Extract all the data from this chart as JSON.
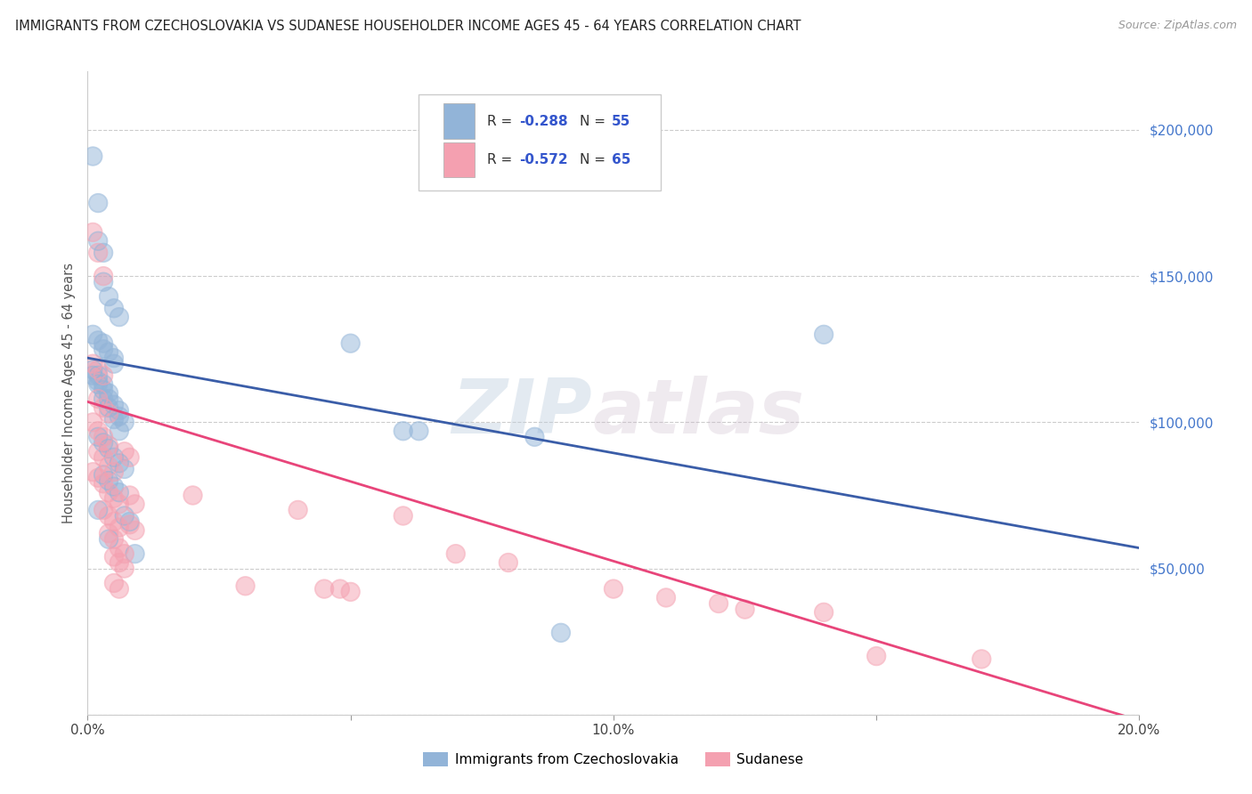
{
  "title": "IMMIGRANTS FROM CZECHOSLOVAKIA VS SUDANESE HOUSEHOLDER INCOME AGES 45 - 64 YEARS CORRELATION CHART",
  "source": "Source: ZipAtlas.com",
  "ylabel": "Householder Income Ages 45 - 64 years",
  "xlim": [
    0.0,
    0.2
  ],
  "ylim": [
    0,
    220000
  ],
  "yticks": [
    0,
    50000,
    100000,
    150000,
    200000
  ],
  "ytick_labels_right": [
    "",
    "$50,000",
    "$100,000",
    "$150,000",
    "$200,000"
  ],
  "xticks": [
    0.0,
    0.05,
    0.1,
    0.15,
    0.2
  ],
  "xtick_labels": [
    "0.0%",
    "",
    "10.0%",
    "",
    "20.0%"
  ],
  "blue_color": "#92B4D8",
  "pink_color": "#F4A0B0",
  "blue_line_color": "#3A5DA8",
  "pink_line_color": "#E8457A",
  "watermark_zip": "ZIP",
  "watermark_atlas": "atlas",
  "blue_line": {
    "x0": 0.0,
    "y0": 122000,
    "x1": 0.2,
    "y1": 57000
  },
  "pink_line": {
    "x0": 0.0,
    "y0": 107000,
    "x1": 0.2,
    "y1": -2000
  },
  "blue_scatter": [
    [
      0.001,
      191000
    ],
    [
      0.002,
      175000
    ],
    [
      0.002,
      162000
    ],
    [
      0.003,
      158000
    ],
    [
      0.003,
      148000
    ],
    [
      0.004,
      143000
    ],
    [
      0.005,
      139000
    ],
    [
      0.006,
      136000
    ],
    [
      0.001,
      130000
    ],
    [
      0.002,
      128000
    ],
    [
      0.003,
      127000
    ],
    [
      0.003,
      125000
    ],
    [
      0.004,
      124000
    ],
    [
      0.005,
      122000
    ],
    [
      0.005,
      120000
    ],
    [
      0.001,
      118000
    ],
    [
      0.002,
      116000
    ],
    [
      0.002,
      114000
    ],
    [
      0.003,
      113000
    ],
    [
      0.003,
      111000
    ],
    [
      0.004,
      110000
    ],
    [
      0.004,
      108000
    ],
    [
      0.005,
      106000
    ],
    [
      0.006,
      104000
    ],
    [
      0.006,
      102000
    ],
    [
      0.007,
      100000
    ],
    [
      0.001,
      116000
    ],
    [
      0.002,
      113000
    ],
    [
      0.003,
      108000
    ],
    [
      0.004,
      105000
    ],
    [
      0.005,
      101000
    ],
    [
      0.006,
      97000
    ],
    [
      0.002,
      95000
    ],
    [
      0.003,
      93000
    ],
    [
      0.004,
      91000
    ],
    [
      0.005,
      88000
    ],
    [
      0.006,
      86000
    ],
    [
      0.007,
      84000
    ],
    [
      0.003,
      82000
    ],
    [
      0.004,
      80000
    ],
    [
      0.005,
      78000
    ],
    [
      0.006,
      76000
    ],
    [
      0.002,
      70000
    ],
    [
      0.007,
      68000
    ],
    [
      0.008,
      66000
    ],
    [
      0.004,
      60000
    ],
    [
      0.009,
      55000
    ],
    [
      0.05,
      127000
    ],
    [
      0.06,
      97000
    ],
    [
      0.063,
      97000
    ],
    [
      0.085,
      95000
    ],
    [
      0.14,
      130000
    ],
    [
      0.09,
      28000
    ]
  ],
  "pink_scatter": [
    [
      0.001,
      165000
    ],
    [
      0.002,
      158000
    ],
    [
      0.003,
      150000
    ],
    [
      0.001,
      120000
    ],
    [
      0.002,
      118000
    ],
    [
      0.003,
      116000
    ],
    [
      0.002,
      108000
    ],
    [
      0.003,
      105000
    ],
    [
      0.004,
      103000
    ],
    [
      0.001,
      100000
    ],
    [
      0.002,
      97000
    ],
    [
      0.003,
      95000
    ],
    [
      0.004,
      92000
    ],
    [
      0.002,
      90000
    ],
    [
      0.003,
      88000
    ],
    [
      0.004,
      85000
    ],
    [
      0.005,
      83000
    ],
    [
      0.001,
      83000
    ],
    [
      0.002,
      81000
    ],
    [
      0.003,
      79000
    ],
    [
      0.004,
      76000
    ],
    [
      0.005,
      74000
    ],
    [
      0.006,
      72000
    ],
    [
      0.003,
      70000
    ],
    [
      0.004,
      68000
    ],
    [
      0.005,
      66000
    ],
    [
      0.006,
      64000
    ],
    [
      0.004,
      62000
    ],
    [
      0.005,
      60000
    ],
    [
      0.006,
      57000
    ],
    [
      0.007,
      55000
    ],
    [
      0.005,
      54000
    ],
    [
      0.006,
      52000
    ],
    [
      0.007,
      50000
    ],
    [
      0.007,
      90000
    ],
    [
      0.008,
      88000
    ],
    [
      0.008,
      75000
    ],
    [
      0.009,
      72000
    ],
    [
      0.008,
      65000
    ],
    [
      0.009,
      63000
    ],
    [
      0.005,
      45000
    ],
    [
      0.006,
      43000
    ],
    [
      0.02,
      75000
    ],
    [
      0.04,
      70000
    ],
    [
      0.03,
      44000
    ],
    [
      0.045,
      43000
    ],
    [
      0.048,
      43000
    ],
    [
      0.05,
      42000
    ],
    [
      0.06,
      68000
    ],
    [
      0.07,
      55000
    ],
    [
      0.08,
      52000
    ],
    [
      0.1,
      43000
    ],
    [
      0.11,
      40000
    ],
    [
      0.12,
      38000
    ],
    [
      0.125,
      36000
    ],
    [
      0.14,
      35000
    ],
    [
      0.15,
      20000
    ],
    [
      0.17,
      19000
    ]
  ]
}
